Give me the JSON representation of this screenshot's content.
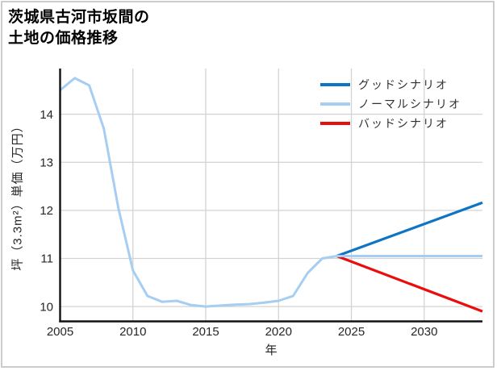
{
  "title": {
    "line1": "茨城県古河市坂間の",
    "line2": "土地の価格推移"
  },
  "chart_data": {
    "type": "line",
    "title": "茨城県古河市坂間の土地の価格推移",
    "xlabel": "年",
    "ylabel": "坪（3.3m²）単価（万円）",
    "xlim": [
      2005,
      2034
    ],
    "ylim": [
      9.7,
      14.95
    ],
    "xticks": [
      2005,
      2010,
      2015,
      2020,
      2025,
      2030
    ],
    "yticks": [
      10,
      11,
      12,
      13,
      14
    ],
    "grid": true,
    "colors": {
      "grid": "#d3d3d3",
      "spine": "#111111",
      "tick_text": "#262626"
    },
    "legend": {
      "position": "upper-right",
      "items": [
        {
          "key": "good",
          "label": "グッドシナリオ",
          "color": "#0e74c4"
        },
        {
          "key": "normal",
          "label": "ノーマルシナリオ",
          "color": "#a6cdf2"
        },
        {
          "key": "bad",
          "label": "バッドシナリオ",
          "color": "#ea0d0d"
        }
      ]
    },
    "series": [
      {
        "key": "good",
        "name": "グッドシナリオ",
        "color": "#0e74c4",
        "width": 3.2,
        "points": [
          [
            2024,
            11.05
          ],
          [
            2034,
            12.16
          ]
        ]
      },
      {
        "key": "bad",
        "name": "バッドシナリオ",
        "color": "#ea0d0d",
        "width": 3.2,
        "points": [
          [
            2024,
            11.05
          ],
          [
            2034,
            9.9
          ]
        ]
      },
      {
        "key": "normal",
        "name": "ノーマルシナリオ",
        "color": "#a6cdf2",
        "width": 3,
        "points": [
          [
            2005,
            14.5
          ],
          [
            2006,
            14.75
          ],
          [
            2007,
            14.6
          ],
          [
            2008,
            13.7
          ],
          [
            2009,
            12.05
          ],
          [
            2010,
            10.75
          ],
          [
            2011,
            10.22
          ],
          [
            2012,
            10.1
          ],
          [
            2013,
            10.12
          ],
          [
            2014,
            10.03
          ],
          [
            2015,
            10.0
          ],
          [
            2016,
            10.02
          ],
          [
            2017,
            10.04
          ],
          [
            2018,
            10.05
          ],
          [
            2019,
            10.08
          ],
          [
            2020,
            10.12
          ],
          [
            2021,
            10.22
          ],
          [
            2022,
            10.7
          ],
          [
            2023,
            11.0
          ],
          [
            2024,
            11.05
          ],
          [
            2034,
            11.05
          ]
        ]
      }
    ]
  }
}
